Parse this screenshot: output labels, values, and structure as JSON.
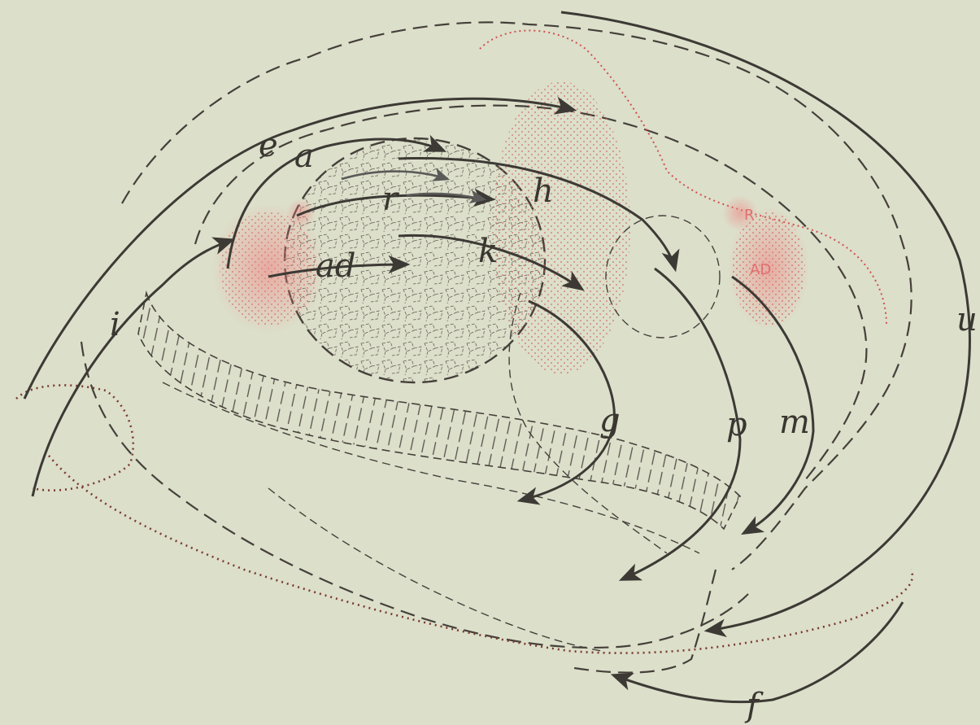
{
  "colors": {
    "background": "#dcdfca",
    "outline": "#45403a",
    "arrow": "#3d3a35",
    "red_region": "#d05050"
  },
  "labels": {
    "e": "e",
    "a": "a",
    "r": "r",
    "h": "h",
    "k": "k",
    "ad": "ad",
    "i": "i",
    "g": "g",
    "p": "p",
    "m": "m",
    "u": "u",
    "f": "f"
  },
  "region_labels": {
    "R": "R",
    "AD": "AD"
  }
}
